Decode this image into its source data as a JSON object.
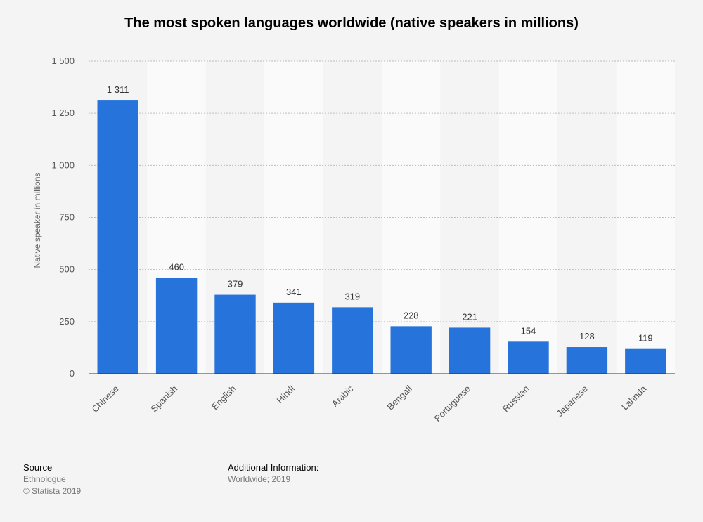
{
  "chart_data": {
    "type": "bar",
    "title": "The most spoken languages worldwide (native speakers in millions)",
    "xlabel": "",
    "ylabel": "Native speaker in millions",
    "categories": [
      "Chinese",
      "Spanish",
      "English",
      "Hindi",
      "Arabic",
      "Bengali",
      "Portuguese",
      "Russian",
      "Japanese",
      "Lahnda"
    ],
    "values": [
      1311,
      460,
      379,
      341,
      319,
      228,
      221,
      154,
      128,
      119
    ],
    "value_labels": [
      "1 311",
      "460",
      "379",
      "341",
      "319",
      "228",
      "221",
      "154",
      "128",
      "119"
    ],
    "ylim": [
      0,
      1500
    ],
    "yticks": [
      0,
      250,
      500,
      750,
      1000,
      1250,
      1500
    ],
    "ytick_labels": [
      "0",
      "250",
      "500",
      "750",
      "1 000",
      "1 250",
      "1 500"
    ],
    "grid": true,
    "bar_color": "#2673db"
  },
  "footer": {
    "source_heading": "Source",
    "source_name": "Ethnologue",
    "copyright": "© Statista 2019",
    "info_heading": "Additional Information:",
    "info_text": "Worldwide; 2019"
  }
}
